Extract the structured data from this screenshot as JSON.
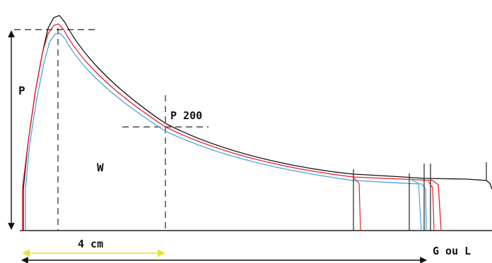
{
  "labels": {
    "p": "P",
    "p200": "P 200",
    "w": "W",
    "distance": "4 cm",
    "g_ou_l": "G ou L"
  },
  "colors": {
    "curve_1": "#111111",
    "curve_2": "#e8202a",
    "curve_3": "#4aa3e0",
    "guides": "#222222",
    "distance_arrow": "#e8e23a",
    "background": "#ffffff"
  }
}
